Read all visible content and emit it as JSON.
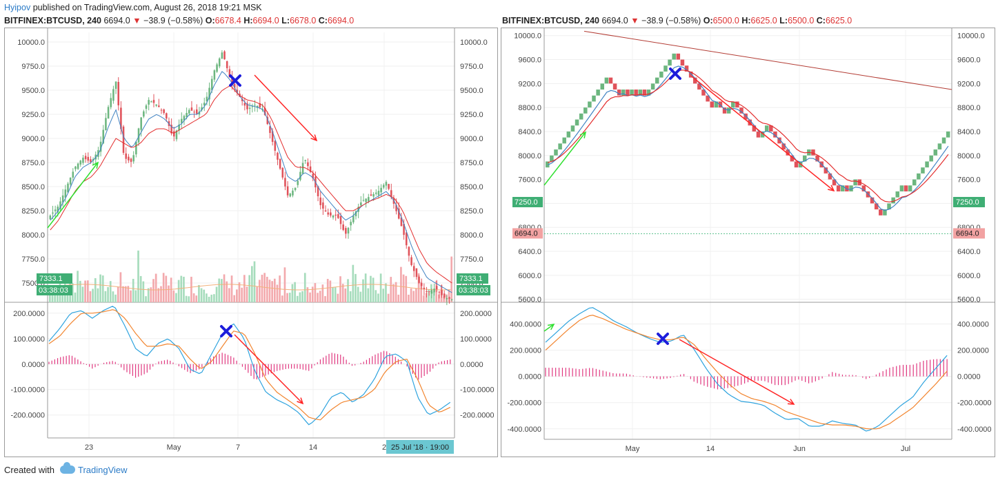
{
  "header": {
    "user": "Hyipov",
    "text": " published on TradingView.com, August 26, 2018 19:21 MSK"
  },
  "left": {
    "symbol": "BITFINEX:BTCUSD, 240",
    "price": "6694.0",
    "arrow": "▼",
    "change": "−38.9 (−0.58%)",
    "o": "O:",
    "o_val": "6678.4",
    "h": "H:",
    "h_val": "6694.0",
    "l": "L:",
    "l_val": "6678.0",
    "c": "C:",
    "c_val": "6694.0",
    "price_ticks": [
      "10000.0",
      "9750.0",
      "9500.0",
      "9250.0",
      "9000.0",
      "8750.0",
      "8500.0",
      "8250.0",
      "8000.0",
      "7750.0",
      "7500.0"
    ],
    "osc_ticks": [
      "200.0000",
      "100.0000",
      "0.0000",
      "-100.0000",
      "-200.0000"
    ],
    "x_ticks": [
      "23",
      "May",
      "7",
      "14",
      "2"
    ],
    "badge_price": "7333.1",
    "badge_time": "03:38:03",
    "crosshair_label": "25 Jul '18 · 19:00"
  },
  "right": {
    "symbol": "BITFINEX:BTCUSD, 240",
    "price": "6694.0",
    "arrow": "▼",
    "change": "−38.9 (−0.58%)",
    "o": "O:",
    "o_val": "6500.0",
    "h": "H:",
    "h_val": "6625.0",
    "l": "L:",
    "l_val": "6500.0",
    "c": "C:",
    "c_val": "6625.0",
    "price_ticks": [
      "10000.0",
      "9600.0",
      "9200.0",
      "8800.0",
      "8400.0",
      "8000.0",
      "7600.0",
      "7200.0",
      "6800.0",
      "6400.0",
      "6000.0",
      "5600.0"
    ],
    "osc_ticks": [
      "400.0000",
      "200.0000",
      "0.0000",
      "-200.0000",
      "-400.0000"
    ],
    "x_ticks": [
      "May",
      "14",
      "Jun",
      "Jul"
    ],
    "badge_green": "7250.0",
    "badge_red": "6694.0"
  },
  "footer": {
    "created": "Created with",
    "brand": "TradingView"
  },
  "colors": {
    "up": "#6cb67f",
    "down": "#e0525a",
    "ema_fast": "#3f82c2",
    "ema_slow": "#e32d2d",
    "macd": "#2ea3de",
    "signal": "#f2852f",
    "hist": "#e0377f",
    "arrow_up": "#2fe02f",
    "arrow_down": "#ff2424",
    "cross": "#1d1ddb",
    "badge": "#3fae74",
    "badge_red": "#f2a2a2",
    "time_label": "#6bc7d1"
  },
  "chart_data": [
    {
      "type": "candlestick",
      "name_panel": "left",
      "ylim": [
        7300,
        10100
      ],
      "x_categories": [
        "23",
        "May",
        "7",
        "14",
        "2"
      ],
      "close_path": [
        8200,
        8300,
        8500,
        8700,
        8800,
        8750,
        8900,
        9300,
        9600,
        8800,
        8750,
        9200,
        9400,
        9350,
        9250,
        9000,
        9200,
        9300,
        9250,
        9400,
        9700,
        9900,
        9600,
        9450,
        9300,
        9350,
        9300,
        9000,
        8700,
        8400,
        8500,
        8800,
        8600,
        8300,
        8200,
        8200,
        8000,
        8200,
        8350,
        8400,
        8450,
        8550,
        8300,
        8050,
        7700,
        7500,
        7400,
        7450,
        7350,
        7333
      ],
      "ema_fast_path": [
        8150,
        8250,
        8400,
        8600,
        8700,
        8750,
        8850,
        9100,
        9300,
        9000,
        8900,
        9050,
        9200,
        9250,
        9200,
        9100,
        9150,
        9250,
        9250,
        9350,
        9550,
        9700,
        9600,
        9450,
        9350,
        9330,
        9300,
        9100,
        8850,
        8600,
        8550,
        8650,
        8600,
        8450,
        8350,
        8250,
        8150,
        8200,
        8300,
        8350,
        8400,
        8450,
        8350,
        8150,
        7900,
        7700,
        7550,
        7500,
        7450,
        7400
      ],
      "ema_slow_path": [
        8050,
        8150,
        8300,
        8450,
        8550,
        8600,
        8700,
        8850,
        9000,
        8950,
        8900,
        8950,
        9050,
        9100,
        9100,
        9050,
        9100,
        9150,
        9200,
        9250,
        9400,
        9500,
        9550,
        9450,
        9400,
        9380,
        9340,
        9200,
        9000,
        8800,
        8700,
        8700,
        8650,
        8550,
        8450,
        8350,
        8250,
        8250,
        8300,
        8350,
        8380,
        8420,
        8380,
        8250,
        8050,
        7850,
        7700,
        7620,
        7560,
        7500
      ]
    },
    {
      "type": "line",
      "name_panel": "left-macd",
      "ylim": [
        -290,
        240
      ],
      "macd": [
        90,
        140,
        200,
        210,
        180,
        210,
        230,
        150,
        60,
        30,
        80,
        100,
        60,
        -20,
        -40,
        40,
        120,
        160,
        100,
        -30,
        -110,
        -140,
        -160,
        -190,
        -240,
        -200,
        -130,
        -110,
        -150,
        -120,
        -60,
        30,
        40,
        10,
        -130,
        -200,
        -180,
        -150
      ],
      "signal": [
        80,
        110,
        160,
        200,
        200,
        205,
        215,
        180,
        120,
        70,
        70,
        80,
        70,
        20,
        -20,
        10,
        70,
        130,
        120,
        40,
        -60,
        -110,
        -140,
        -170,
        -210,
        -220,
        -180,
        -150,
        -140,
        -130,
        -100,
        -30,
        10,
        20,
        -60,
        -160,
        -190,
        -170
      ]
    },
    {
      "type": "renko",
      "name_panel": "right",
      "ylim": [
        5550,
        10100
      ],
      "x_categories": [
        "May",
        "14",
        "Jun",
        "Jul"
      ],
      "bricks": [
        1,
        1,
        1,
        1,
        1,
        1,
        1,
        1,
        1,
        1,
        1,
        1,
        1,
        1,
        1,
        -1,
        -1,
        -1,
        1,
        -1,
        1,
        -1,
        1,
        -1,
        1,
        1,
        1,
        1,
        1,
        1,
        1,
        -1,
        -1,
        -1,
        -1,
        -1,
        -1,
        -1,
        -1,
        -1,
        1,
        -1,
        -1,
        1,
        1,
        -1,
        -1,
        -1,
        -1,
        -1,
        -1,
        1,
        1,
        -1,
        -1,
        -1,
        -1,
        -1,
        -1,
        -1,
        1,
        1,
        1,
        -1,
        -1,
        -1,
        -1,
        -1,
        -1,
        -1,
        1,
        -1,
        1,
        1,
        -1,
        -1,
        -1,
        -1,
        -1,
        -1,
        1,
        1,
        1,
        1,
        1,
        -1,
        1,
        1,
        1,
        1,
        1,
        1,
        1,
        1,
        1,
        1
      ],
      "brick_size": 100,
      "start": 7800,
      "trendline": [
        10050,
        9100
      ]
    },
    {
      "type": "line",
      "name_panel": "right-macd",
      "ylim": [
        -480,
        560
      ],
      "macd": [
        260,
        340,
        420,
        480,
        530,
        480,
        420,
        380,
        330,
        290,
        260,
        270,
        320,
        200,
        60,
        -60,
        -140,
        -190,
        -200,
        -220,
        -280,
        -330,
        -320,
        -380,
        -380,
        -340,
        -360,
        -370,
        -420,
        -380,
        -300,
        -220,
        -160,
        -40,
        60,
        160
      ],
      "signal": [
        200,
        280,
        360,
        430,
        470,
        440,
        400,
        360,
        330,
        300,
        280,
        280,
        300,
        240,
        130,
        30,
        -60,
        -130,
        -170,
        -190,
        -220,
        -270,
        -300,
        -330,
        -360,
        -370,
        -370,
        -380,
        -400,
        -400,
        -360,
        -300,
        -240,
        -150,
        -60,
        40
      ]
    }
  ]
}
